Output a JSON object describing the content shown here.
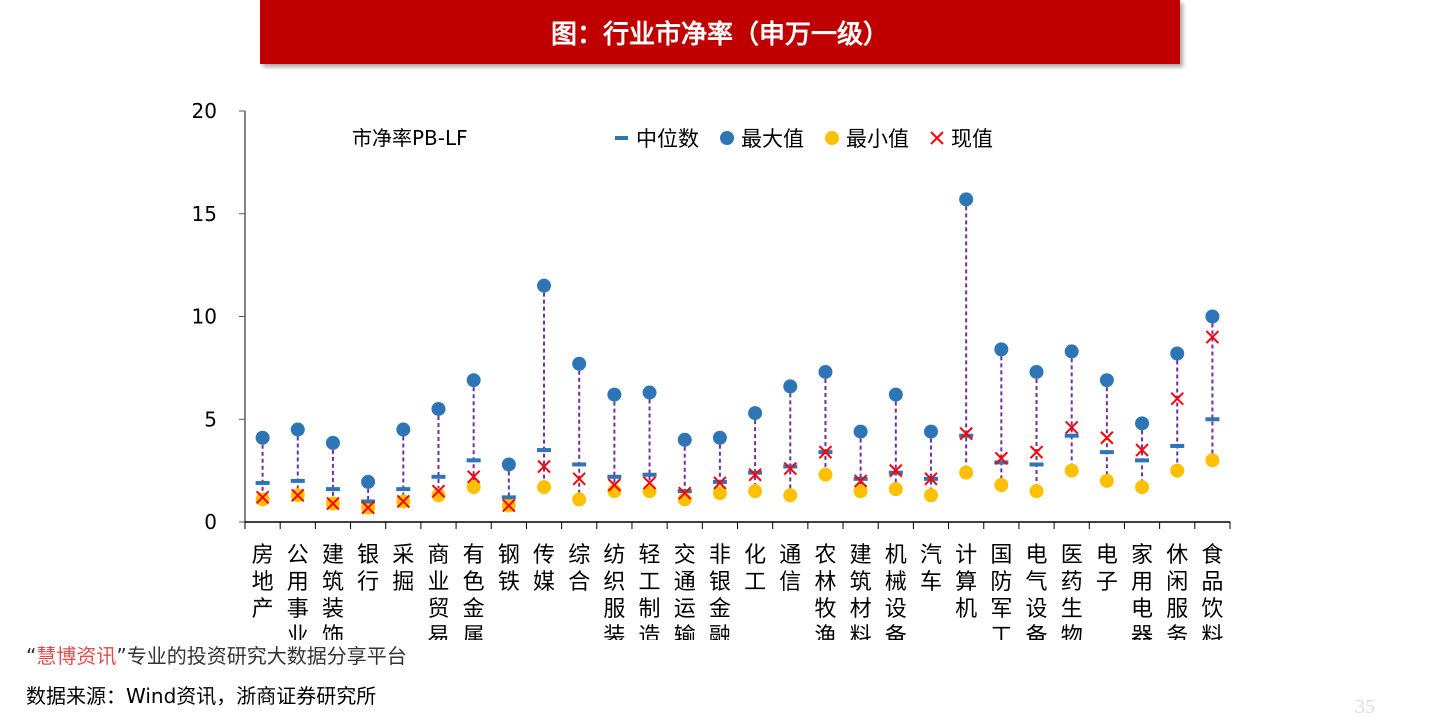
{
  "title": "图：行业市净率（申万一级）",
  "footer": {
    "quote_open": "“",
    "brand": "慧博资讯",
    "quote_close": "”",
    "slogan": "专业的投资研究大数据分享平台",
    "source": "数据来源：Wind资讯，浙商证券研究所"
  },
  "page_number": "35",
  "chart_data": {
    "type": "scatter",
    "title": "市净率PB-LF",
    "ylim": [
      0,
      20
    ],
    "yticks": [
      0,
      5,
      10,
      15,
      20
    ],
    "grid": false,
    "legend_placement": "top",
    "categories": [
      "房地产",
      "公用事业",
      "建筑装饰",
      "银行",
      "采掘",
      "商业贸易",
      "有色金属",
      "钢铁",
      "传媒",
      "综合",
      "纺织服装",
      "轻工制造",
      "交通运输",
      "非银金融",
      "化工",
      "通信",
      "农林牧渔",
      "建筑材料",
      "机械设备",
      "汽车",
      "计算机",
      "国防军工",
      "电气设备",
      "医药生物",
      "电子",
      "家用电器",
      "休闲服务",
      "食品饮料"
    ],
    "series": [
      {
        "name": "中位数",
        "color": "#2E75B6",
        "marker": "dash",
        "values": [
          1.9,
          2.0,
          1.6,
          1.0,
          1.6,
          2.2,
          3.0,
          1.2,
          3.5,
          2.8,
          2.2,
          2.3,
          1.5,
          1.95,
          2.4,
          2.7,
          3.4,
          2.1,
          2.4,
          2.1,
          4.2,
          2.9,
          2.8,
          4.2,
          3.4,
          3.0,
          3.7,
          5.0
        ]
      },
      {
        "name": "最大值",
        "color": "#2E75B6",
        "marker": "circle",
        "values": [
          4.1,
          4.5,
          3.85,
          1.95,
          4.5,
          5.5,
          6.9,
          2.8,
          11.5,
          7.7,
          6.2,
          6.3,
          4.0,
          4.1,
          5.3,
          6.6,
          7.3,
          4.4,
          6.2,
          4.4,
          15.7,
          8.4,
          7.3,
          8.3,
          6.9,
          4.8,
          8.2,
          10.0
        ]
      },
      {
        "name": "最小值",
        "color": "#FFC000",
        "marker": "circle",
        "values": [
          1.1,
          1.3,
          0.9,
          0.7,
          1.0,
          1.3,
          1.7,
          0.8,
          1.7,
          1.1,
          1.5,
          1.5,
          1.1,
          1.4,
          1.5,
          1.3,
          2.3,
          1.5,
          1.6,
          1.3,
          2.4,
          1.8,
          1.5,
          2.5,
          2.0,
          1.7,
          2.5,
          3.0
        ]
      },
      {
        "name": "现值",
        "color": "#FF0000",
        "marker": "x",
        "values": [
          1.2,
          1.3,
          0.9,
          0.7,
          1.0,
          1.5,
          2.2,
          0.8,
          2.7,
          2.1,
          1.8,
          1.9,
          1.4,
          1.9,
          2.3,
          2.6,
          3.4,
          2.0,
          2.5,
          2.1,
          4.3,
          3.1,
          3.4,
          4.6,
          4.1,
          3.5,
          6.0,
          9.0
        ]
      }
    ],
    "range_line_color": "#7030A0"
  }
}
